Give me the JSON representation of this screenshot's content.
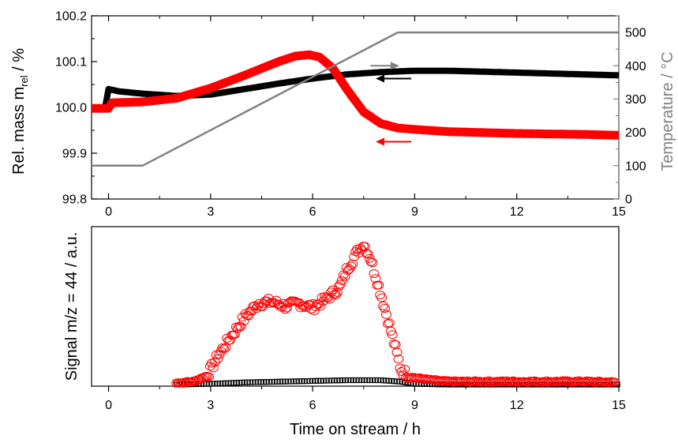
{
  "chart_data": [
    {
      "type": "line",
      "panel": "top",
      "xlabel": "",
      "ylabel": "Rel. mass m",
      "ylabel_sub": "rel",
      "ylabel_suffix": " / %",
      "y2label": "Temperature / °C",
      "xlim": [
        -0.5,
        15
      ],
      "ylim": [
        99.8,
        100.2
      ],
      "y2lim": [
        0,
        550
      ],
      "xticks": [
        "0",
        "3",
        "6",
        "9",
        "12",
        "15"
      ],
      "yticks": [
        "99.8",
        "99.9",
        "100.0",
        "100.1",
        "100.2"
      ],
      "y2ticks": [
        "0",
        "100",
        "200",
        "300",
        "400",
        "500"
      ],
      "legend": "none",
      "grid": false,
      "series": [
        {
          "color": "#000000",
          "axis": "left",
          "points": [
            [
              -0.5,
              100.0
            ],
            [
              -0.1,
              100.0
            ],
            [
              0.0,
              100.04
            ],
            [
              0.3,
              100.035
            ],
            [
              1,
              100.03
            ],
            [
              2,
              100.025
            ],
            [
              3,
              100.028
            ],
            [
              4,
              100.04
            ],
            [
              5,
              100.052
            ],
            [
              6,
              100.063
            ],
            [
              7,
              100.072
            ],
            [
              8,
              100.077
            ],
            [
              9,
              100.08
            ],
            [
              10,
              100.08
            ],
            [
              11,
              100.078
            ],
            [
              12,
              100.076
            ],
            [
              13,
              100.074
            ],
            [
              14,
              100.072
            ],
            [
              15,
              100.07
            ]
          ]
        },
        {
          "color": "#ff0000",
          "axis": "left",
          "points": [
            [
              -0.5,
              99.998
            ],
            [
              0,
              99.998
            ],
            [
              0.1,
              100.01
            ],
            [
              1,
              100.012
            ],
            [
              2,
              100.02
            ],
            [
              3,
              100.042
            ],
            [
              4,
              100.07
            ],
            [
              5,
              100.1
            ],
            [
              5.5,
              100.112
            ],
            [
              5.9,
              100.115
            ],
            [
              6.2,
              100.11
            ],
            [
              6.6,
              100.085
            ],
            [
              7,
              100.04
            ],
            [
              7.5,
              99.99
            ],
            [
              8,
              99.965
            ],
            [
              8.5,
              99.955
            ],
            [
              9,
              99.952
            ],
            [
              10,
              99.947
            ],
            [
              11,
              99.945
            ],
            [
              12,
              99.943
            ],
            [
              13,
              99.942
            ],
            [
              14,
              99.941
            ],
            [
              15,
              99.939
            ]
          ]
        },
        {
          "color": "#808080",
          "axis": "right",
          "points": [
            [
              -0.5,
              100
            ],
            [
              1.0,
              100
            ],
            [
              8.5,
              500
            ],
            [
              15,
              500
            ]
          ]
        }
      ],
      "annotations": [
        {
          "type": "arrow",
          "color": "#808080",
          "direction": "right",
          "from": [
            7.7,
            400
          ],
          "to": [
            8.5,
            400
          ],
          "axis": "right"
        },
        {
          "type": "arrow",
          "color": "#000000",
          "direction": "left",
          "from": [
            8.9,
            100.063
          ],
          "to": [
            7.9,
            100.063
          ],
          "axis": "left"
        },
        {
          "type": "arrow",
          "color": "#ff0000",
          "direction": "left",
          "from": [
            8.9,
            99.925
          ],
          "to": [
            7.9,
            99.925
          ],
          "axis": "left"
        }
      ]
    },
    {
      "type": "scatter",
      "panel": "bottom",
      "xlabel": "Time on stream / h",
      "ylabel": "Signal m/z = 44 / a.u.",
      "xlim": [
        -0.5,
        15
      ],
      "ylim": [
        0,
        1.1
      ],
      "xticks": [
        "0",
        "3",
        "6",
        "9",
        "12",
        "15"
      ],
      "yticks": [],
      "legend": "none",
      "grid": false,
      "series": [
        {
          "color": "#ff0000",
          "marker": "circle-open",
          "points": [
            [
              2,
              0.0
            ],
            [
              2.5,
              0.01
            ],
            [
              2.9,
              0.05
            ],
            [
              3.2,
              0.18
            ],
            [
              3.6,
              0.32
            ],
            [
              4.0,
              0.45
            ],
            [
              4.4,
              0.55
            ],
            [
              4.8,
              0.56
            ],
            [
              5.2,
              0.53
            ],
            [
              5.6,
              0.55
            ],
            [
              6.0,
              0.52
            ],
            [
              6.4,
              0.58
            ],
            [
              6.8,
              0.66
            ],
            [
              7.0,
              0.78
            ],
            [
              7.3,
              0.9
            ],
            [
              7.5,
              0.96
            ],
            [
              7.7,
              0.86
            ],
            [
              8.0,
              0.62
            ],
            [
              8.3,
              0.36
            ],
            [
              8.6,
              0.09
            ],
            [
              8.9,
              0.04
            ],
            [
              9.5,
              0.02
            ],
            [
              10,
              0.01
            ],
            [
              11,
              0.01
            ],
            [
              12,
              0.01
            ],
            [
              13,
              0.01
            ],
            [
              14,
              0.01
            ],
            [
              15,
              0.005
            ]
          ]
        },
        {
          "color": "#000000",
          "marker": "square-open",
          "points": [
            [
              2,
              0.0
            ],
            [
              3,
              0.005
            ],
            [
              3.5,
              0.01
            ],
            [
              4,
              0.015
            ],
            [
              5,
              0.02
            ],
            [
              6,
              0.025
            ],
            [
              7,
              0.03
            ],
            [
              8,
              0.03
            ],
            [
              8.6,
              0.02
            ],
            [
              9,
              0.005
            ],
            [
              10,
              0.0
            ],
            [
              12,
              0.0
            ],
            [
              15,
              0.0
            ]
          ]
        }
      ]
    }
  ]
}
